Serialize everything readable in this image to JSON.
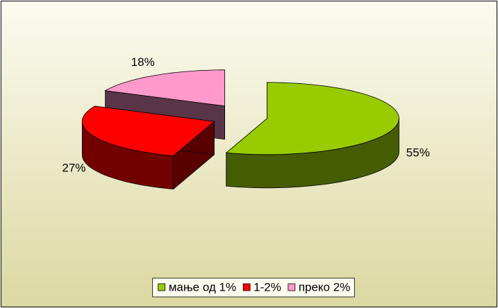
{
  "chart_data": {
    "type": "pie3d",
    "categories": [
      "мање од 1%",
      "1-2%",
      "преко 2%"
    ],
    "values": [
      55,
      27,
      18
    ],
    "value_labels": [
      "55%",
      "27%",
      "18%"
    ],
    "colors": [
      "#99cc00",
      "#ff0000",
      "#ff99cc"
    ],
    "legend": "bottom"
  }
}
